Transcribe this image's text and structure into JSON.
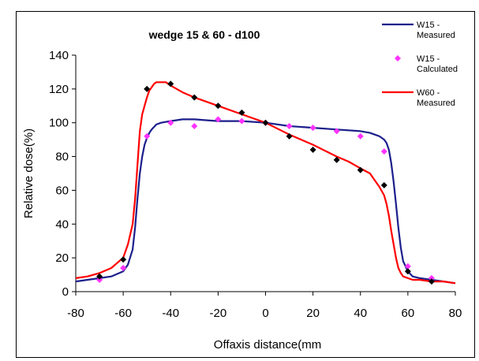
{
  "chart_data": {
    "type": "line",
    "title": "wedge 15 & 60 - d100",
    "xlabel": "Offaxis distance(mm",
    "ylabel": "Relative dose(%)",
    "xlim": [
      -80,
      80
    ],
    "ylim": [
      0,
      140
    ],
    "xticks": [
      -80,
      -60,
      -40,
      -20,
      0,
      20,
      40,
      60,
      80
    ],
    "yticks": [
      0,
      20,
      40,
      60,
      80,
      100,
      120,
      140
    ],
    "grid": false,
    "legend_position": "top-right",
    "series": [
      {
        "name": "W15 - Measured",
        "kind": "line",
        "color": "#1c1f8c",
        "x": [
          -80,
          -75,
          -70,
          -65,
          -60,
          -58,
          -56,
          -55,
          -54,
          -53,
          -52,
          -51,
          -50,
          -49,
          -48,
          -46,
          -44,
          -40,
          -35,
          -30,
          -20,
          -10,
          0,
          10,
          20,
          30,
          40,
          44,
          46,
          48,
          50,
          51,
          52,
          53,
          54,
          55,
          56,
          57,
          58,
          60,
          62,
          65,
          70,
          75,
          80
        ],
        "y": [
          6,
          7,
          8,
          9,
          12,
          16,
          25,
          38,
          55,
          70,
          80,
          87,
          91,
          94,
          96,
          99,
          100,
          101,
          102,
          102,
          101,
          101,
          100,
          98,
          97,
          96,
          95,
          94,
          93,
          92,
          90,
          88,
          84,
          76,
          65,
          52,
          38,
          26,
          18,
          12,
          9,
          8,
          7,
          6,
          5
        ]
      },
      {
        "name": "W15 - Calculated",
        "kind": "scatter",
        "color": "#ff33ff",
        "x": [
          -70,
          -60,
          -50,
          -40,
          -30,
          -20,
          -10,
          0,
          10,
          20,
          30,
          40,
          50,
          60,
          70
        ],
        "y": [
          7,
          14,
          92,
          100,
          98,
          102,
          101,
          100,
          98,
          97,
          95,
          92,
          83,
          15,
          8
        ]
      },
      {
        "name": "W60 - Measured",
        "kind": "line",
        "color": "#ff0000",
        "x": [
          -80,
          -75,
          -70,
          -65,
          -60,
          -58,
          -56,
          -55,
          -54,
          -53,
          -52,
          -51,
          -50,
          -49,
          -48,
          -47,
          -46,
          -45,
          -44,
          -42,
          -40,
          -35,
          -30,
          -20,
          -10,
          0,
          10,
          20,
          30,
          35,
          40,
          44,
          46,
          48,
          50,
          51,
          52,
          53,
          54,
          55,
          56,
          57,
          58,
          60,
          62,
          65,
          70,
          75,
          80
        ],
        "y": [
          8,
          9,
          11,
          14,
          20,
          28,
          40,
          55,
          75,
          95,
          105,
          110,
          115,
          119,
          121,
          123,
          124,
          124,
          124,
          124,
          122,
          118,
          115,
          110,
          105,
          100,
          93,
          87,
          80,
          77,
          73,
          70,
          66,
          62,
          57,
          52,
          45,
          36,
          28,
          20,
          14,
          11,
          9,
          8,
          7,
          7,
          6,
          6,
          5
        ]
      },
      {
        "name": "",
        "kind": "scatter",
        "color": "#000000",
        "x": [
          -70,
          -60,
          -50,
          -40,
          -30,
          -20,
          -10,
          0,
          10,
          20,
          30,
          40,
          50,
          60,
          70
        ],
        "y": [
          9,
          19,
          120,
          123,
          115,
          110,
          106,
          100,
          92,
          84,
          78,
          72,
          63,
          12,
          6
        ]
      }
    ]
  },
  "legend": [
    {
      "label": "W15 - Measured",
      "lines": [
        "W15 -",
        "Measured"
      ],
      "symbol": "line",
      "color": "#1c1f8c"
    },
    {
      "label": "W15 - Calculated",
      "lines": [
        "W15 -",
        "Calculated"
      ],
      "symbol": "diamond",
      "color": "#ff33ff"
    },
    {
      "label": "W60 - Measured",
      "lines": [
        "W60 -",
        "Measured"
      ],
      "symbol": "line",
      "color": "#ff0000"
    }
  ]
}
